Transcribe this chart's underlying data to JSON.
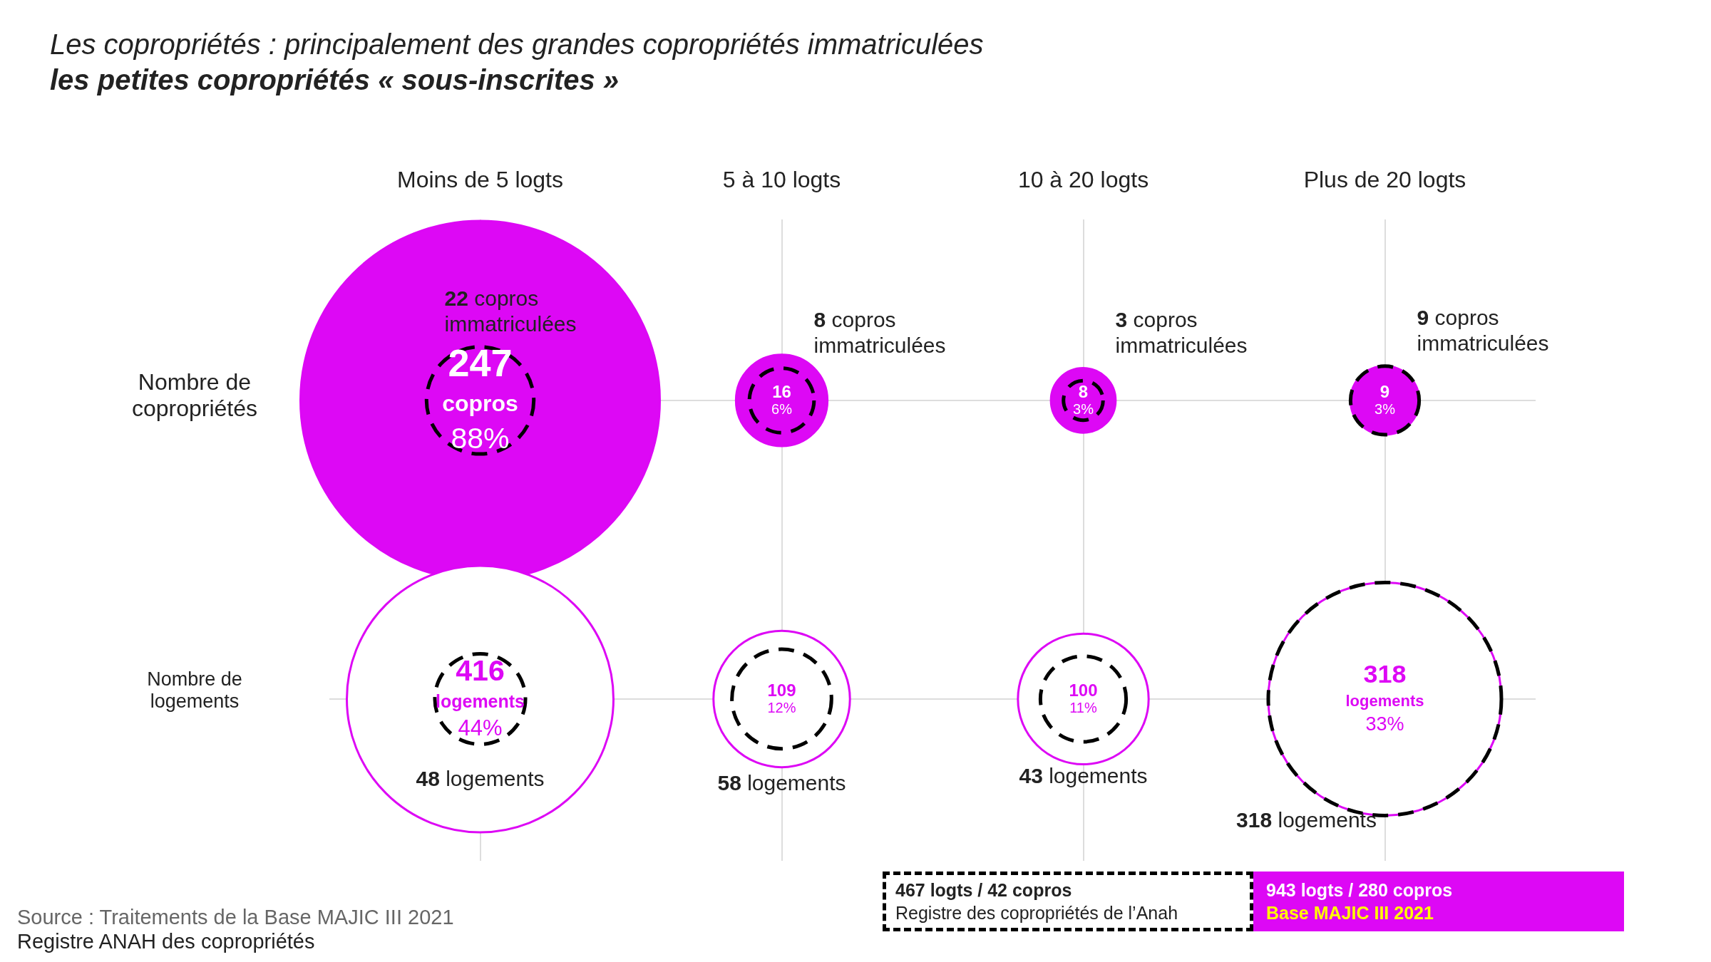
{
  "chart_data": {
    "type": "other",
    "title": "Les copropriétés : principalement des grandes copropriétés immatriculées",
    "subtitle": "les petites copropriétés « sous-inscrites »",
    "categories": [
      "Moins de 5 logts",
      "5 à 10 logts",
      "10 à 20 logts",
      "Plus de 20 logts"
    ],
    "annotations": [
      "Nombre de copropriétés",
      "Nombre de logements",
      "467 logts / 42 copros",
      "Registre des copropriétés de l’Anah",
      "943 logts / 280 copros",
      "Base MAJIC III 2021",
      "Source : Traitements de la Base MAJIC III 2021",
      "Registre ANAH des copropriétés"
    ],
    "series": [
      {
        "color": "#dd08f5",
        "values": [
          247,
          16,
          8,
          9
        ],
        "value_labels": [
          "247 copros 88%",
          "16 6%",
          "8 3%",
          "9 3%"
        ]
      },
      {
        "color": "#000000",
        "line_style": "dashed",
        "values": [
          22,
          8,
          3,
          9
        ],
        "value_labels": [
          "22 copros immatriculées",
          "8 copros immatriculées",
          "3 copros immatriculées",
          "9 copros immatriculées"
        ]
      },
      {
        "color": "#dd08f5",
        "values": [
          416,
          109,
          100,
          318
        ],
        "value_labels": [
          "416 logements 44%",
          "109 12%",
          "100 11%",
          "318 logements 33%"
        ]
      },
      {
        "color": "#000000",
        "line_style": "dashed",
        "values": [
          48,
          58,
          43,
          318
        ],
        "value_labels": [
          "48 logements",
          "58 logements",
          "43 logements",
          "318 logements"
        ]
      }
    ]
  }
}
